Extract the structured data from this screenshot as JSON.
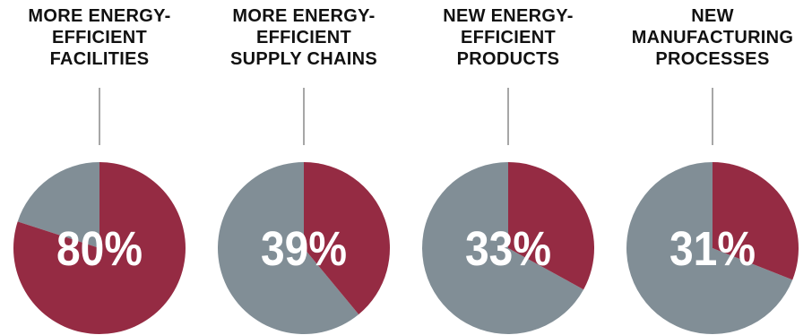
{
  "chart_data": {
    "type": "pie",
    "series": [
      {
        "name": "MORE ENERGY-EFFICIENT FACILITIES",
        "label": "80%",
        "value": 80
      },
      {
        "name": "MORE ENERGY-EFFICIENT SUPPLY CHAINS",
        "label": "39%",
        "value": 39
      },
      {
        "name": "NEW ENERGY-EFFICIENT PRODUCTS",
        "label": "33%",
        "value": 33
      },
      {
        "name": "NEW MANUFACTURING PROCESSES",
        "label": "31%",
        "value": 31
      }
    ],
    "colors": {
      "share": "#952b43",
      "remainder": "#818e96",
      "connector": "#a7a7a7",
      "title": "#111111",
      "label": "#ffffff"
    }
  },
  "panels": [
    {
      "title": "MORE ENERGY-\nEFFICIENT\nFACILITIES"
    },
    {
      "title": "MORE ENERGY-\nEFFICIENT\nSUPPLY CHAINS"
    },
    {
      "title": "NEW ENERGY-\nEFFICIENT\nPRODUCTS"
    },
    {
      "title": "NEW\nMANUFACTURING\nPROCESSES"
    }
  ]
}
